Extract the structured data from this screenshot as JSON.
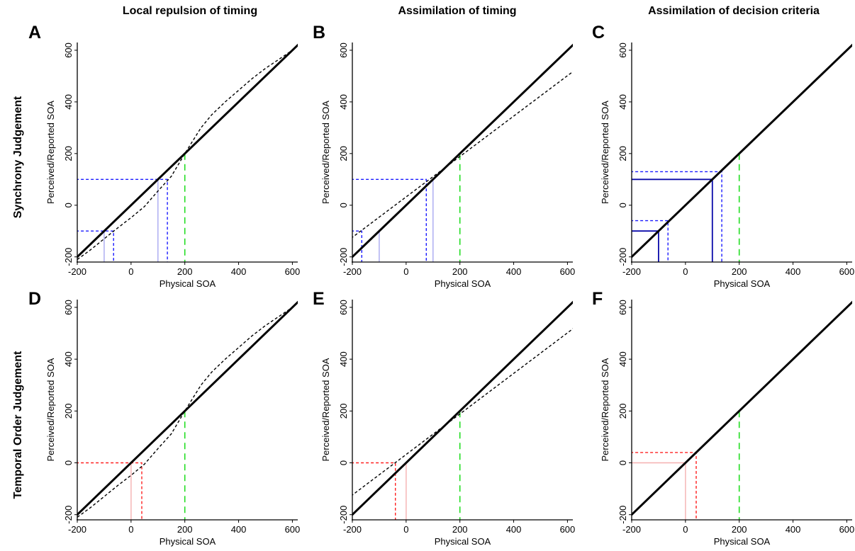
{
  "column_titles": [
    "Local repulsion of timing",
    "Assimilation of timing",
    "Assimilation of decision criteria"
  ],
  "row_titles": [
    "Synchrony Judgement",
    "Temporal Order Judgement"
  ],
  "colors": {
    "identity": "#000000",
    "curve": "#000000",
    "blue_guides": "#1a1aff",
    "blue_dark": "#0a0aaa",
    "blue_light": "#a8a8f0",
    "red_guides": "#ff2020",
    "red_light": "#f5b0b0",
    "green_marker": "#22dd22"
  },
  "chart_data": [
    {
      "panel": "A",
      "type": "line",
      "xlabel": "Physical SOA",
      "ylabel": "Perceived/Reported SOA",
      "xlim": [
        -200,
        620
      ],
      "ylim": [
        -220,
        630
      ],
      "xticks": [
        -200,
        0,
        200,
        400,
        600
      ],
      "yticks": [
        -200,
        0,
        200,
        400,
        600
      ],
      "grid": false,
      "series": [
        {
          "style": "identity",
          "x": [
            -220,
            630
          ],
          "y": [
            -220,
            630
          ]
        },
        {
          "style": "curve",
          "x": [
            -200,
            -150,
            -100,
            -50,
            0,
            50,
            100,
            150,
            200,
            230,
            260,
            300,
            350,
            400,
            450,
            500,
            550,
            600,
            625
          ],
          "y": [
            -210,
            -172,
            -130,
            -88,
            -48,
            -5,
            55,
            112,
            200,
            250,
            300,
            350,
            400,
            445,
            490,
            530,
            565,
            600,
            625
          ]
        }
      ],
      "guides": [
        {
          "style": "blue-dashed",
          "x": [
            -205,
            -65,
            -65
          ],
          "y": [
            -100,
            -100,
            -220
          ]
        },
        {
          "style": "blue-light",
          "x": [
            -100,
            -100
          ],
          "y": [
            -100,
            -220
          ]
        },
        {
          "style": "blue-dashed",
          "x": [
            -205,
            135,
            135
          ],
          "y": [
            100,
            100,
            -220
          ]
        },
        {
          "style": "blue-light",
          "x": [
            100,
            100
          ],
          "y": [
            100,
            -220
          ]
        },
        {
          "style": "green-dashed",
          "x": [
            200,
            200
          ],
          "y": [
            200,
            -220
          ]
        }
      ]
    },
    {
      "panel": "B",
      "type": "line",
      "xlabel": "Physical SOA",
      "ylabel": "Perceived/Reported SOA",
      "xlim": [
        -200,
        620
      ],
      "ylim": [
        -220,
        630
      ],
      "xticks": [
        -200,
        0,
        200,
        400,
        600
      ],
      "yticks": [
        -200,
        0,
        200,
        400,
        600
      ],
      "grid": false,
      "series": [
        {
          "style": "identity",
          "x": [
            -220,
            630
          ],
          "y": [
            -220,
            630
          ]
        },
        {
          "style": "curve",
          "x": [
            -220,
            630
          ],
          "y": [
            -140,
            525
          ]
        }
      ],
      "guides": [
        {
          "style": "blue-dashed",
          "x": [
            -205,
            -165,
            -165
          ],
          "y": [
            -100,
            -100,
            -220
          ]
        },
        {
          "style": "blue-light",
          "x": [
            -100,
            -100
          ],
          "y": [
            -100,
            -220
          ]
        },
        {
          "style": "blue-dashed",
          "x": [
            -205,
            75,
            75
          ],
          "y": [
            100,
            100,
            -220
          ]
        },
        {
          "style": "blue-light",
          "x": [
            100,
            100
          ],
          "y": [
            100,
            -220
          ]
        },
        {
          "style": "green-dashed",
          "x": [
            200,
            200
          ],
          "y": [
            200,
            -220
          ]
        }
      ]
    },
    {
      "panel": "C",
      "type": "line",
      "xlabel": "Physical SOA",
      "ylabel": "Perceived/Reported SOA",
      "xlim": [
        -200,
        620
      ],
      "ylim": [
        -220,
        630
      ],
      "xticks": [
        -200,
        0,
        200,
        400,
        600
      ],
      "yticks": [
        -200,
        0,
        200,
        400,
        600
      ],
      "grid": false,
      "series": [
        {
          "style": "identity",
          "x": [
            -220,
            630
          ],
          "y": [
            -220,
            630
          ]
        }
      ],
      "guides": [
        {
          "style": "blue-dashed",
          "x": [
            -205,
            -65,
            -65
          ],
          "y": [
            -60,
            -60,
            -220
          ]
        },
        {
          "style": "blue-solid",
          "x": [
            -205,
            -100,
            -100
          ],
          "y": [
            -100,
            -100,
            -220
          ]
        },
        {
          "style": "blue-dashed",
          "x": [
            -205,
            135,
            135
          ],
          "y": [
            130,
            130,
            -220
          ]
        },
        {
          "style": "blue-solid",
          "x": [
            -205,
            100,
            100
          ],
          "y": [
            100,
            100,
            -220
          ]
        },
        {
          "style": "green-dashed",
          "x": [
            200,
            200
          ],
          "y": [
            200,
            -220
          ]
        }
      ]
    },
    {
      "panel": "D",
      "type": "line",
      "xlabel": "Physical SOA",
      "ylabel": "Perceived/Reported SOA",
      "xlim": [
        -200,
        620
      ],
      "ylim": [
        -220,
        630
      ],
      "xticks": [
        -200,
        0,
        200,
        400,
        600
      ],
      "yticks": [
        -200,
        0,
        200,
        400,
        600
      ],
      "grid": false,
      "series": [
        {
          "style": "identity",
          "x": [
            -220,
            630
          ],
          "y": [
            -220,
            630
          ]
        },
        {
          "style": "curve",
          "x": [
            -200,
            -150,
            -100,
            -50,
            0,
            50,
            100,
            150,
            200,
            230,
            260,
            300,
            350,
            400,
            450,
            500,
            550,
            600,
            625
          ],
          "y": [
            -210,
            -172,
            -130,
            -88,
            -48,
            -5,
            55,
            112,
            200,
            250,
            300,
            350,
            400,
            445,
            490,
            530,
            565,
            600,
            625
          ]
        }
      ],
      "guides": [
        {
          "style": "red-dashed",
          "x": [
            -205,
            40,
            40
          ],
          "y": [
            0,
            0,
            -220
          ]
        },
        {
          "style": "red-light",
          "x": [
            0,
            0
          ],
          "y": [
            0,
            -220
          ]
        },
        {
          "style": "green-dashed",
          "x": [
            200,
            200
          ],
          "y": [
            200,
            -220
          ]
        }
      ]
    },
    {
      "panel": "E",
      "type": "line",
      "xlabel": "Physical SOA",
      "ylabel": "Perceived/Reported SOA",
      "xlim": [
        -200,
        620
      ],
      "ylim": [
        -220,
        630
      ],
      "xticks": [
        -200,
        0,
        200,
        400,
        600
      ],
      "yticks": [
        -200,
        0,
        200,
        400,
        600
      ],
      "grid": false,
      "series": [
        {
          "style": "identity",
          "x": [
            -220,
            630
          ],
          "y": [
            -220,
            630
          ]
        },
        {
          "style": "curve",
          "x": [
            -220,
            630
          ],
          "y": [
            -140,
            525
          ]
        }
      ],
      "guides": [
        {
          "style": "red-dashed",
          "x": [
            -205,
            -40,
            -40
          ],
          "y": [
            0,
            0,
            -220
          ]
        },
        {
          "style": "red-light",
          "x": [
            0,
            0
          ],
          "y": [
            0,
            -220
          ]
        },
        {
          "style": "green-dashed",
          "x": [
            200,
            200
          ],
          "y": [
            200,
            -220
          ]
        }
      ]
    },
    {
      "panel": "F",
      "type": "line",
      "xlabel": "Physical SOA",
      "ylabel": "Perceived/Reported SOA",
      "xlim": [
        -200,
        620
      ],
      "ylim": [
        -220,
        630
      ],
      "xticks": [
        -200,
        0,
        200,
        400,
        600
      ],
      "yticks": [
        -200,
        0,
        200,
        400,
        600
      ],
      "grid": false,
      "series": [
        {
          "style": "identity",
          "x": [
            -220,
            630
          ],
          "y": [
            -220,
            630
          ]
        }
      ],
      "guides": [
        {
          "style": "red-dashed",
          "x": [
            -205,
            40,
            40
          ],
          "y": [
            40,
            40,
            -220
          ]
        },
        {
          "style": "red-light",
          "x": [
            -205,
            0,
            0
          ],
          "y": [
            0,
            0,
            -220
          ]
        },
        {
          "style": "green-dashed",
          "x": [
            200,
            200
          ],
          "y": [
            200,
            -220
          ]
        }
      ]
    }
  ]
}
